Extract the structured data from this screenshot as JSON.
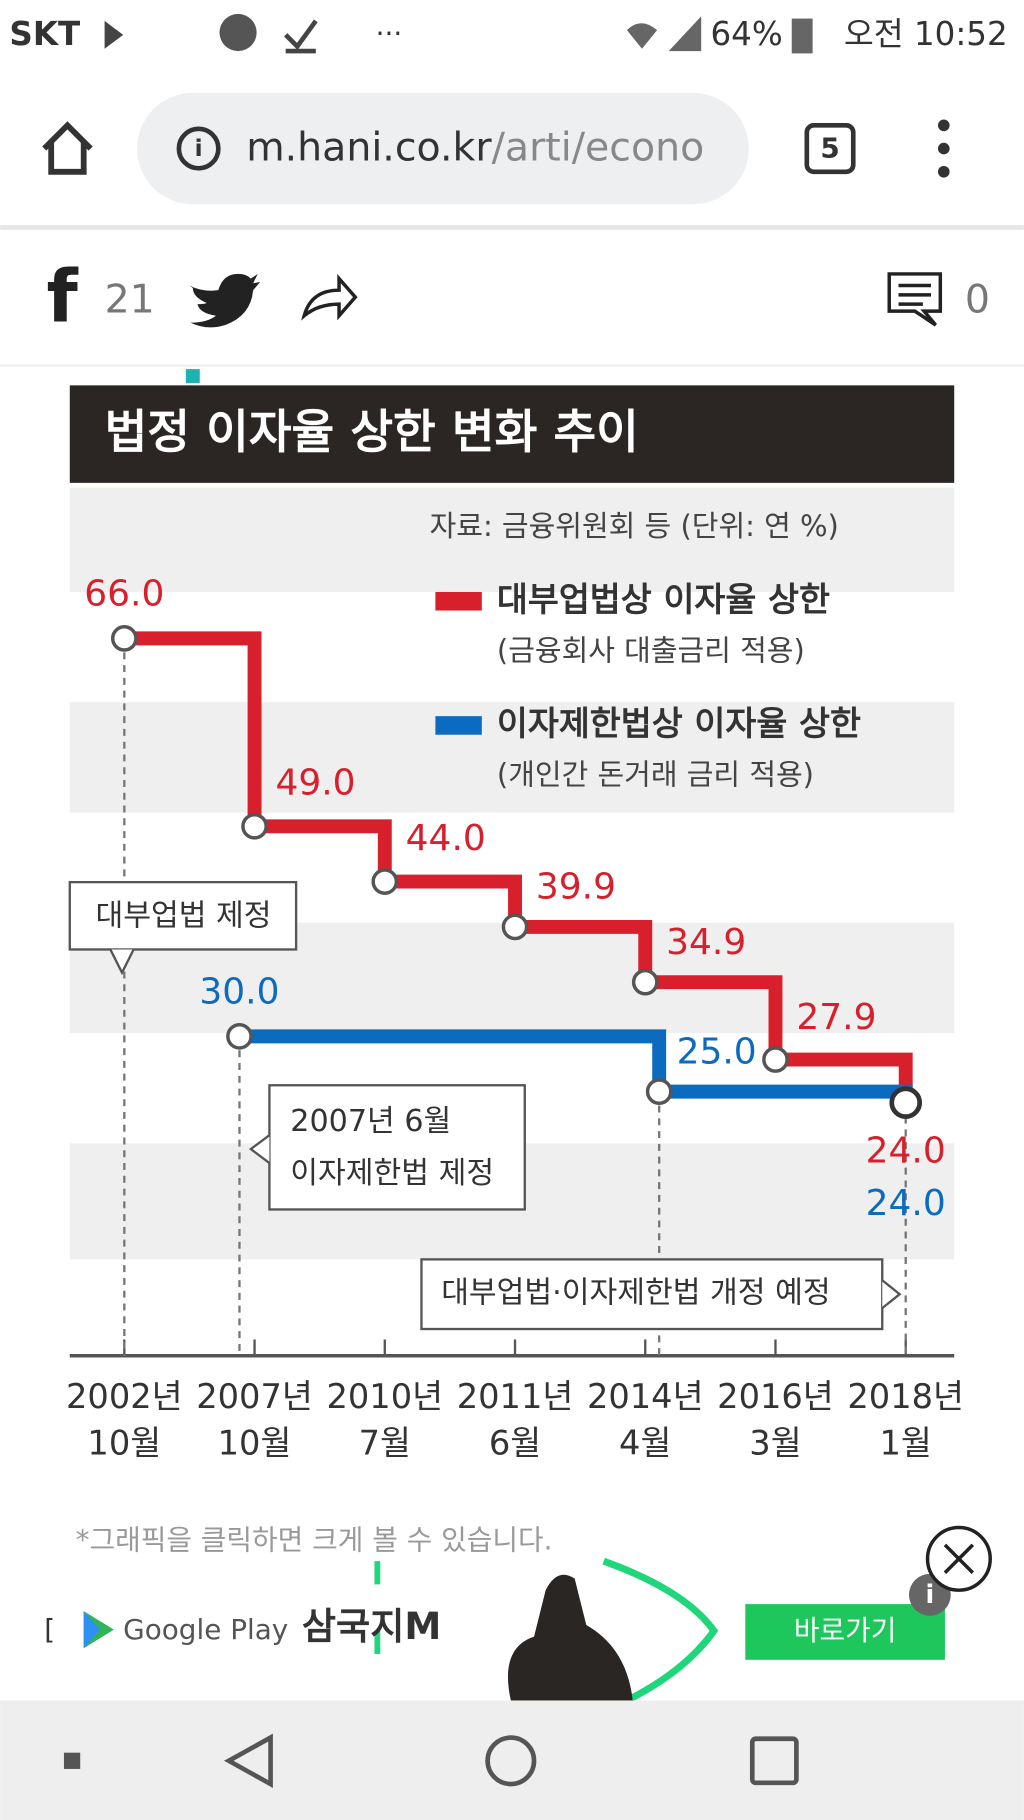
{
  "status_bar": {
    "carrier": "SKT",
    "battery": "64%",
    "time": "오전 10:52"
  },
  "browser": {
    "url_host": "m.hani.co.kr",
    "url_path": "/arti/econo",
    "tab_count": "5"
  },
  "share_bar": {
    "facebook_count": "21",
    "comment_count": "0"
  },
  "chart_data": {
    "type": "step",
    "title": "법정 이자율 상한 변화 추이",
    "source": "자료: 금융위원회 등 (단위: 연 %)",
    "categories": [
      [
        "2002년",
        "10월"
      ],
      [
        "2007년",
        "10월"
      ],
      [
        "2010년",
        "7월"
      ],
      [
        "2011년",
        "6월"
      ],
      [
        "2014년",
        "4월"
      ],
      [
        "2016년",
        "3월"
      ],
      [
        "2018년",
        "1월"
      ]
    ],
    "series": [
      {
        "name": "대부업법상 이자율 상한",
        "note": "(금융회사 대출금리 적용)",
        "color": "#d7202c",
        "values": [
          66.0,
          49.0,
          44.0,
          39.9,
          34.9,
          27.9,
          24.0
        ],
        "value_labels": [
          "66.0",
          "49.0",
          "44.0",
          "39.9",
          "34.9",
          "27.9",
          "24.0"
        ]
      },
      {
        "name": "이자제한법상 이자율 상한",
        "note": "(개인간 돈거래 금리 적용)",
        "color": "#0b6bbf",
        "values": [
          null,
          30.0,
          null,
          null,
          25.0,
          null,
          24.0
        ],
        "value_labels": [
          null,
          "30.0",
          null,
          null,
          "25.0",
          null,
          "24.0"
        ]
      }
    ],
    "annotations": [
      [
        "대부업법 제정"
      ],
      [
        "2007년 6월",
        "이자제한법 제정"
      ],
      [
        "대부업법·이자제한법 개정 예정"
      ]
    ]
  },
  "caption": "*그래픽을 클릭하면 크게 볼 수 있습니다.",
  "ad": {
    "store": "Google Play",
    "game": "삼국지M",
    "button": "바로가기"
  }
}
